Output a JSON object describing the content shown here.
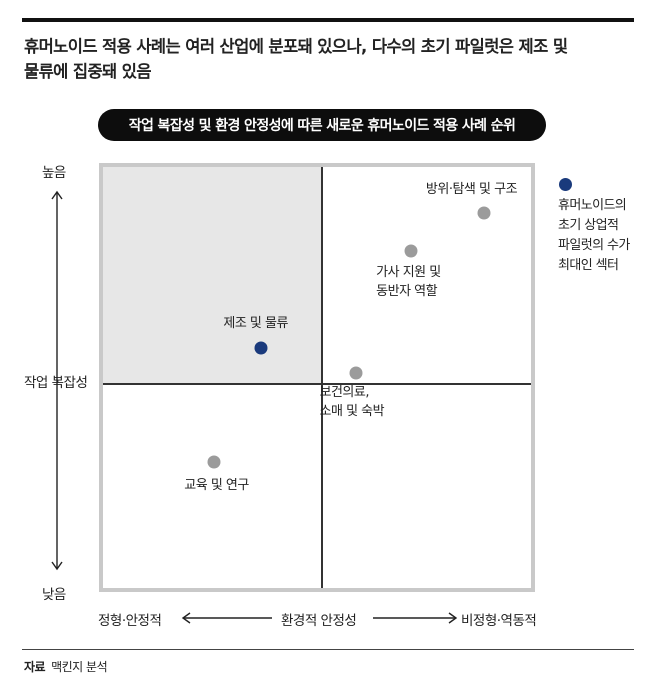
{
  "headline": {
    "line1": "휴머노이드 적용 사례는 여러 산업에 분포돼 있으나, 다수의 초기 파일럿은 제조 및",
    "line2": "물류에 집중돼 있음"
  },
  "chart_data": {
    "type": "scatter",
    "title": "작업 복잡성 및 환경 안정성에 따른 새로운 휴머노이드 적용 사례 순위",
    "xlabel": "환경적 안정성",
    "ylabel": "작업 복잡성",
    "x_low_label": "정형·안정적",
    "x_high_label": "비정형·역동적",
    "y_high_label": "높음",
    "y_low_label": "낮음",
    "xlim": [
      0,
      1
    ],
    "ylim": [
      0,
      1
    ],
    "grid": false,
    "points": [
      {
        "label_lines": [
          "방위·탐색 및 구조"
        ],
        "x": 0.89,
        "y": 0.89,
        "color": "#9b9b9b"
      },
      {
        "label_lines": [
          "가사 지원 및",
          "동반자 역할"
        ],
        "x": 0.72,
        "y": 0.8,
        "color": "#9b9b9b"
      },
      {
        "label_lines": [
          "제조 및 물류"
        ],
        "x": 0.37,
        "y": 0.57,
        "color": "#1a3a7c"
      },
      {
        "label_lines": [
          "보건의료,",
          "소매 및 숙박"
        ],
        "x": 0.59,
        "y": 0.51,
        "color": "#9b9b9b"
      },
      {
        "label_lines": [
          "교육 및 연구"
        ],
        "x": 0.26,
        "y": 0.3,
        "color": "#9b9b9b"
      }
    ],
    "legend": {
      "lines": [
        "휴머노이드의",
        "초기 상업적",
        "파일럿의 수가",
        "최대인 섹터"
      ],
      "color": "#1a3a7c",
      "placement": "right"
    },
    "highlighted_quadrant": "top-left"
  },
  "source": {
    "label": "자료",
    "text": "맥킨지 분석"
  }
}
